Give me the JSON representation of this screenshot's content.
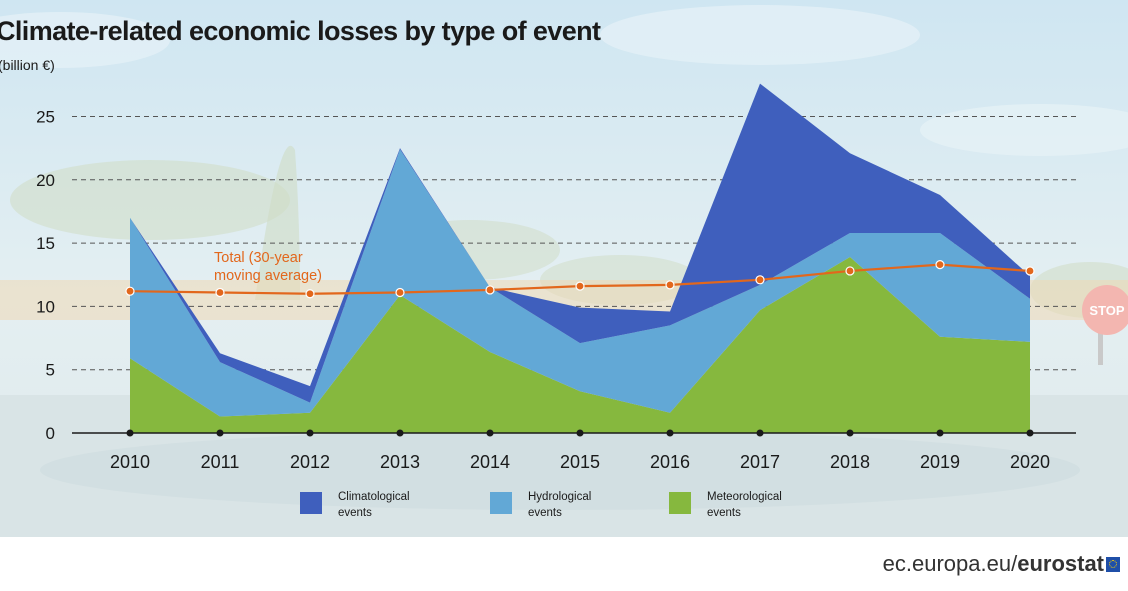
{
  "header": {
    "title": "Climate-related economic losses by type of event",
    "unit": "(billion €)"
  },
  "footer": {
    "domain": "ec.europa.eu",
    "separator": "/",
    "brand": "eurostat"
  },
  "colors": {
    "climatological": "#3f5fbd",
    "hydrological": "#62a8d6",
    "meteorological": "#86b83e",
    "total": "#e2671c",
    "markers": "#1a1a1a",
    "grid": "#555555"
  },
  "chart_data": {
    "type": "area",
    "stacked": true,
    "categories": [
      "2010",
      "2011",
      "2012",
      "2013",
      "2014",
      "2015",
      "2016",
      "2017",
      "2018",
      "2019",
      "2020"
    ],
    "series": [
      {
        "name": "Meteorological events",
        "color": "#86b83e",
        "values": [
          5.9,
          1.3,
          1.6,
          10.9,
          6.4,
          3.3,
          1.6,
          9.7,
          13.9,
          7.6,
          7.2
        ]
      },
      {
        "name": "Hydrological events",
        "color": "#62a8d6",
        "values": [
          11.1,
          4.3,
          0.8,
          11.5,
          5.1,
          3.8,
          6.9,
          2.0,
          1.9,
          8.2,
          3.4
        ]
      },
      {
        "name": "Climatological events",
        "color": "#3f5fbd",
        "values": [
          0.0,
          0.7,
          1.3,
          0.1,
          0.0,
          2.8,
          1.1,
          15.9,
          6.3,
          3.0,
          1.8
        ]
      }
    ],
    "total_line": {
      "label": "Total (30-year moving average)",
      "label_lines": [
        "Total (30-year",
        "moving average)"
      ],
      "values": [
        11.2,
        11.1,
        11.0,
        11.1,
        11.3,
        11.6,
        11.7,
        12.1,
        12.8,
        13.3,
        12.8
      ]
    },
    "ylim": [
      0,
      28
    ],
    "yticks": [
      0,
      5,
      10,
      15,
      20,
      25
    ],
    "legend_lines": {
      "climatological": [
        "Climatological",
        "events"
      ],
      "hydrological": [
        "Hydrological",
        "events"
      ],
      "meteorological": [
        "Meteorological",
        "events"
      ]
    },
    "legend_position": "bottom",
    "grid": "horizontal dashed"
  }
}
